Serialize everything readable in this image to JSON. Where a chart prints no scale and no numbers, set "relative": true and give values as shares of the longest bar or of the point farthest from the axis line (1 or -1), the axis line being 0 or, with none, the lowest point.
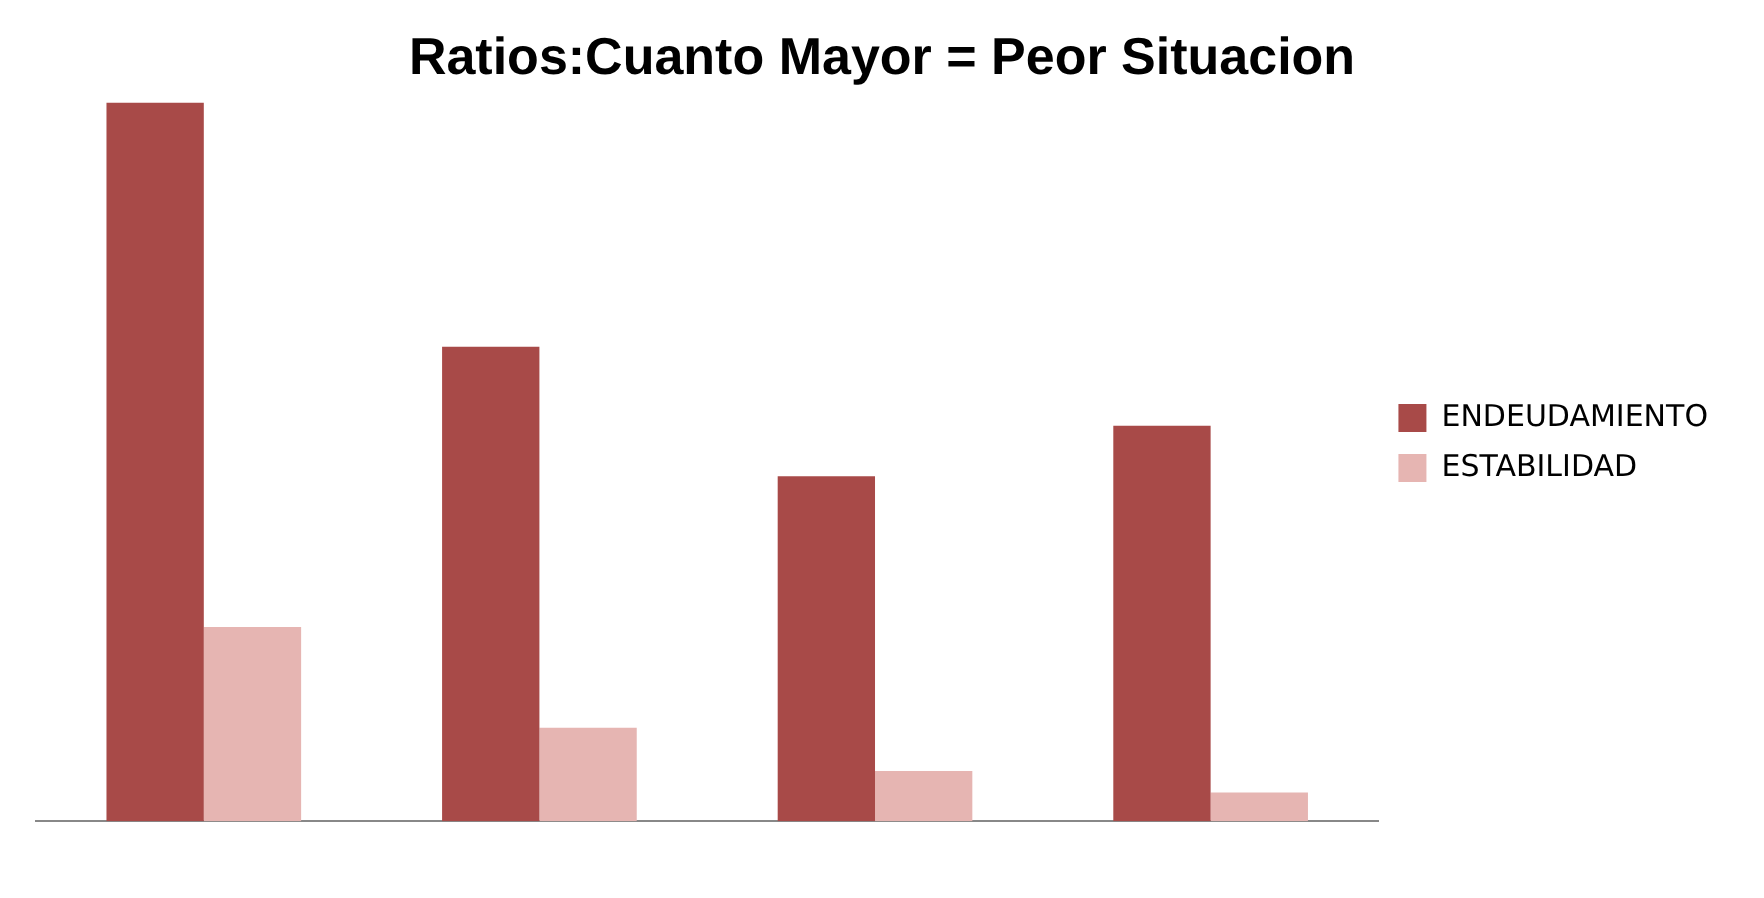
{
  "chart_data": {
    "type": "bar",
    "title": "Ratios:Cuanto Mayor = Peor Situacion",
    "categories": [
      null,
      null,
      null,
      null
    ],
    "relative": true,
    "legend": "right",
    "series": [
      {
        "name": "ENDEUDAMIENTO",
        "color": "#a84a48",
        "values": [
          1,
          0.66,
          0.48,
          0.55
        ]
      },
      {
        "name": "ESTABILIDAD",
        "color": "#e6b5b2",
        "values": [
          0.27,
          0.13,
          0.07,
          0.04
        ]
      }
    ]
  }
}
